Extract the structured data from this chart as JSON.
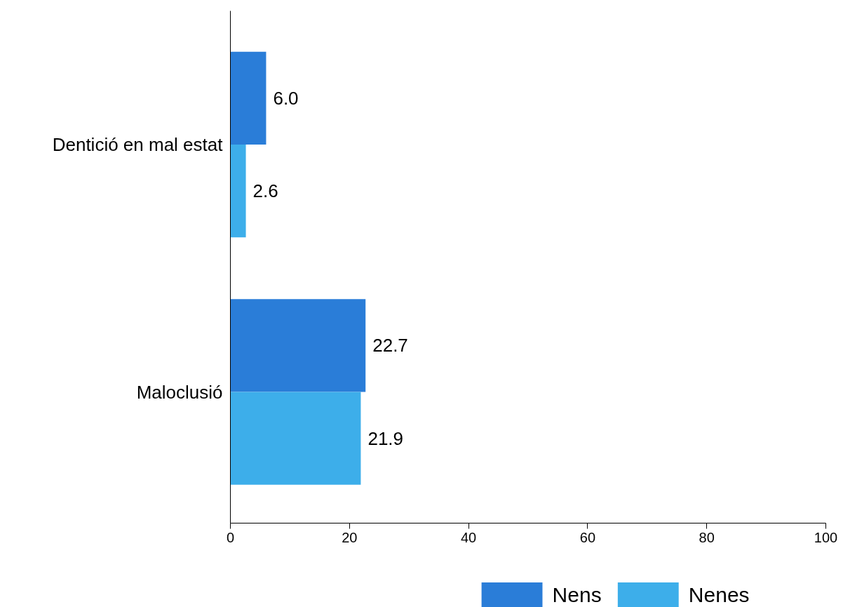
{
  "chart_data": {
    "type": "bar",
    "orientation": "horizontal",
    "categories": [
      "Dentició en mal estat",
      "Maloclusió"
    ],
    "series": [
      {
        "name": "Nens",
        "color": "#2a7dd8",
        "values": [
          6.0,
          22.7
        ],
        "value_labels": [
          "6.0",
          "22.7"
        ]
      },
      {
        "name": "Nenes",
        "color": "#3daeea",
        "values": [
          2.6,
          21.9
        ],
        "value_labels": [
          "2.6",
          "21.9"
        ]
      }
    ],
    "xlim": [
      0,
      100
    ],
    "xticks": [
      0,
      20,
      40,
      60,
      80,
      100
    ],
    "grid": false,
    "legend": "bottom"
  }
}
